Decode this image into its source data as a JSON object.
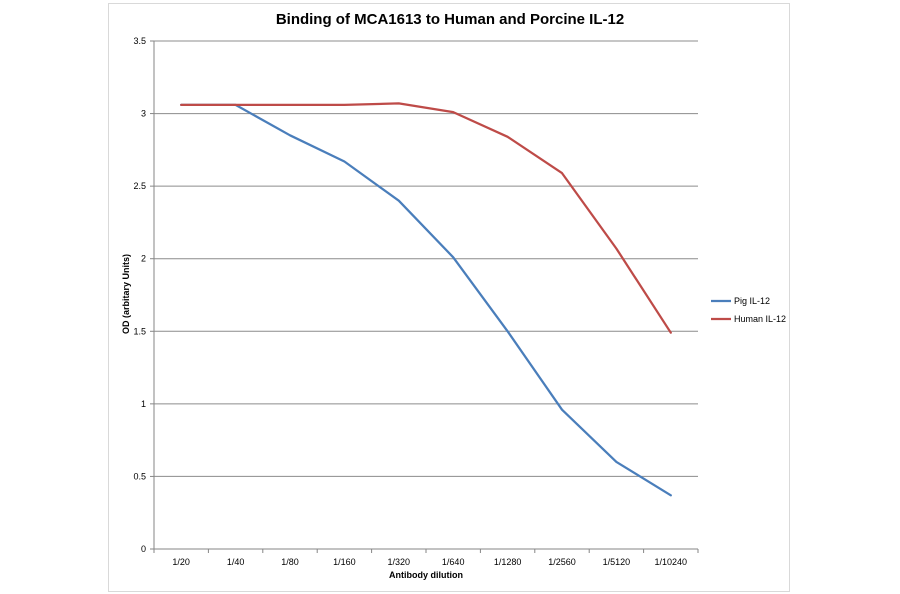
{
  "chart_data": {
    "type": "line",
    "title": "Binding of MCA1613 to Human and Porcine IL-12",
    "xlabel": "Antibody dilution",
    "ylabel": "OD (arbitary Units)",
    "categories": [
      "1/20",
      "1/40",
      "1/80",
      "1/160",
      "1/320",
      "1/640",
      "1/1280",
      "1/2560",
      "1/5120",
      "1/10240"
    ],
    "ylim": [
      0,
      3.5
    ],
    "yticks": [
      "0",
      "0.5",
      "1",
      "1.5",
      "2",
      "2.5",
      "3",
      "3.5"
    ],
    "grid": true,
    "legend_position": "right",
    "series": [
      {
        "name": "Pig IL-12",
        "color": "#4a7ebb",
        "values": [
          3.06,
          3.06,
          2.85,
          2.67,
          2.4,
          2.01,
          1.5,
          0.96,
          0.6,
          0.37
        ]
      },
      {
        "name": "Human IL-12",
        "color": "#be4b48",
        "values": [
          3.06,
          3.06,
          3.06,
          3.06,
          3.07,
          3.01,
          2.84,
          2.59,
          2.07,
          1.49
        ]
      }
    ]
  }
}
